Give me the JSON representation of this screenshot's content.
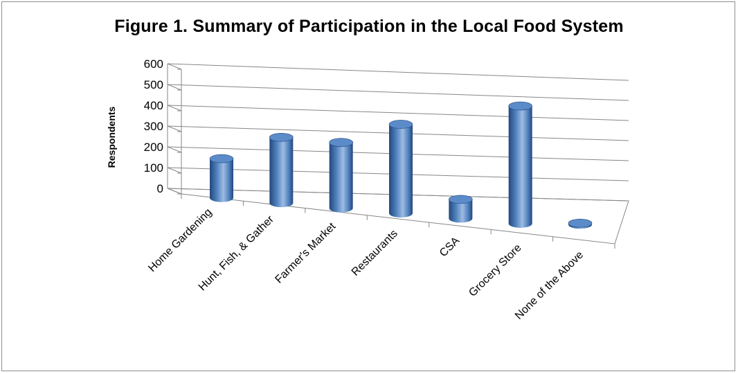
{
  "chart_data": {
    "type": "bar",
    "title": "Figure 1. Summary of Participation in the Local Food System",
    "xlabel": "",
    "ylabel": "Respondents",
    "ylim": [
      0,
      600
    ],
    "yticks": [
      "0",
      "100",
      "200",
      "300",
      "400",
      "500",
      "600"
    ],
    "categories": [
      "Home Gardening",
      "Hunt, Fish, & Gather",
      "Farmer's Market",
      "Restaurants",
      "CSA",
      "Grocery Store",
      "None of the Above"
    ],
    "values": [
      185,
      310,
      310,
      420,
      90,
      555,
      5
    ],
    "grid": true,
    "legend": "none",
    "style": "3d-cylinder",
    "colors": {
      "bar_side": "#4f81bd",
      "bar_dark": "#24477d",
      "bar_light": "#9ebbe3",
      "bar_top": "#5b8bc9",
      "axis": "#868686",
      "grid": "#868686"
    }
  }
}
